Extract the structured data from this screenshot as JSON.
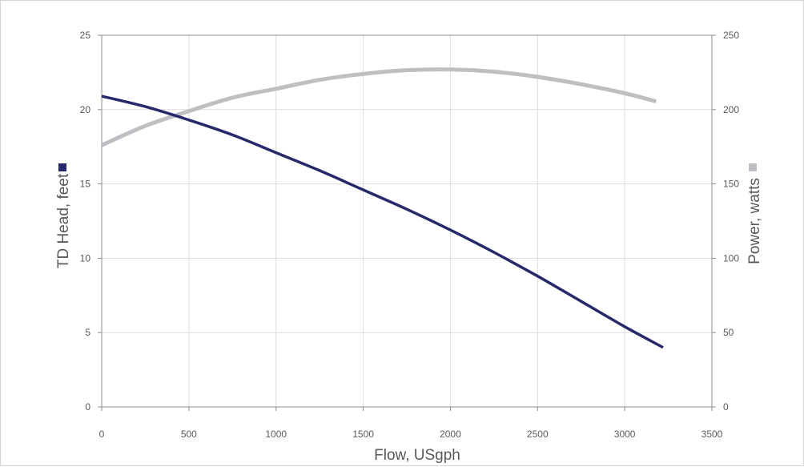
{
  "chart_data": {
    "type": "line",
    "xlabel": "Flow, USgph",
    "ylabel": "TD Head, feet",
    "y2label": "Power, watts",
    "xlim": [
      0,
      3500
    ],
    "ylim": [
      0,
      25
    ],
    "y2lim": [
      0,
      250
    ],
    "x_ticks": [
      0,
      500,
      1000,
      1500,
      2000,
      2500,
      3000,
      3500
    ],
    "y_ticks": [
      0,
      5,
      10,
      15,
      20,
      25
    ],
    "y2_ticks": [
      0,
      50,
      100,
      150,
      200,
      250
    ],
    "grid": true,
    "series": [
      {
        "axis": "left",
        "color": "#262a6b",
        "marker_color": "#262a6b",
        "x": [
          0,
          250,
          500,
          750,
          1000,
          1250,
          1500,
          1750,
          2000,
          2250,
          2500,
          2750,
          3000,
          3220
        ],
        "values": [
          20.9,
          20.2,
          19.3,
          18.3,
          17.1,
          15.9,
          14.6,
          13.3,
          11.9,
          10.4,
          8.8,
          7.1,
          5.4,
          4.0
        ]
      },
      {
        "axis": "right",
        "color": "#bfbfc3",
        "marker_color": "#bfbfc3",
        "x": [
          0,
          250,
          500,
          750,
          1000,
          1250,
          1500,
          1750,
          2000,
          2250,
          2500,
          2750,
          3000,
          3180
        ],
        "values": [
          176,
          189,
          199,
          208,
          214,
          220,
          224,
          226.5,
          227,
          225.5,
          222,
          217,
          211,
          205.5
        ]
      }
    ]
  }
}
